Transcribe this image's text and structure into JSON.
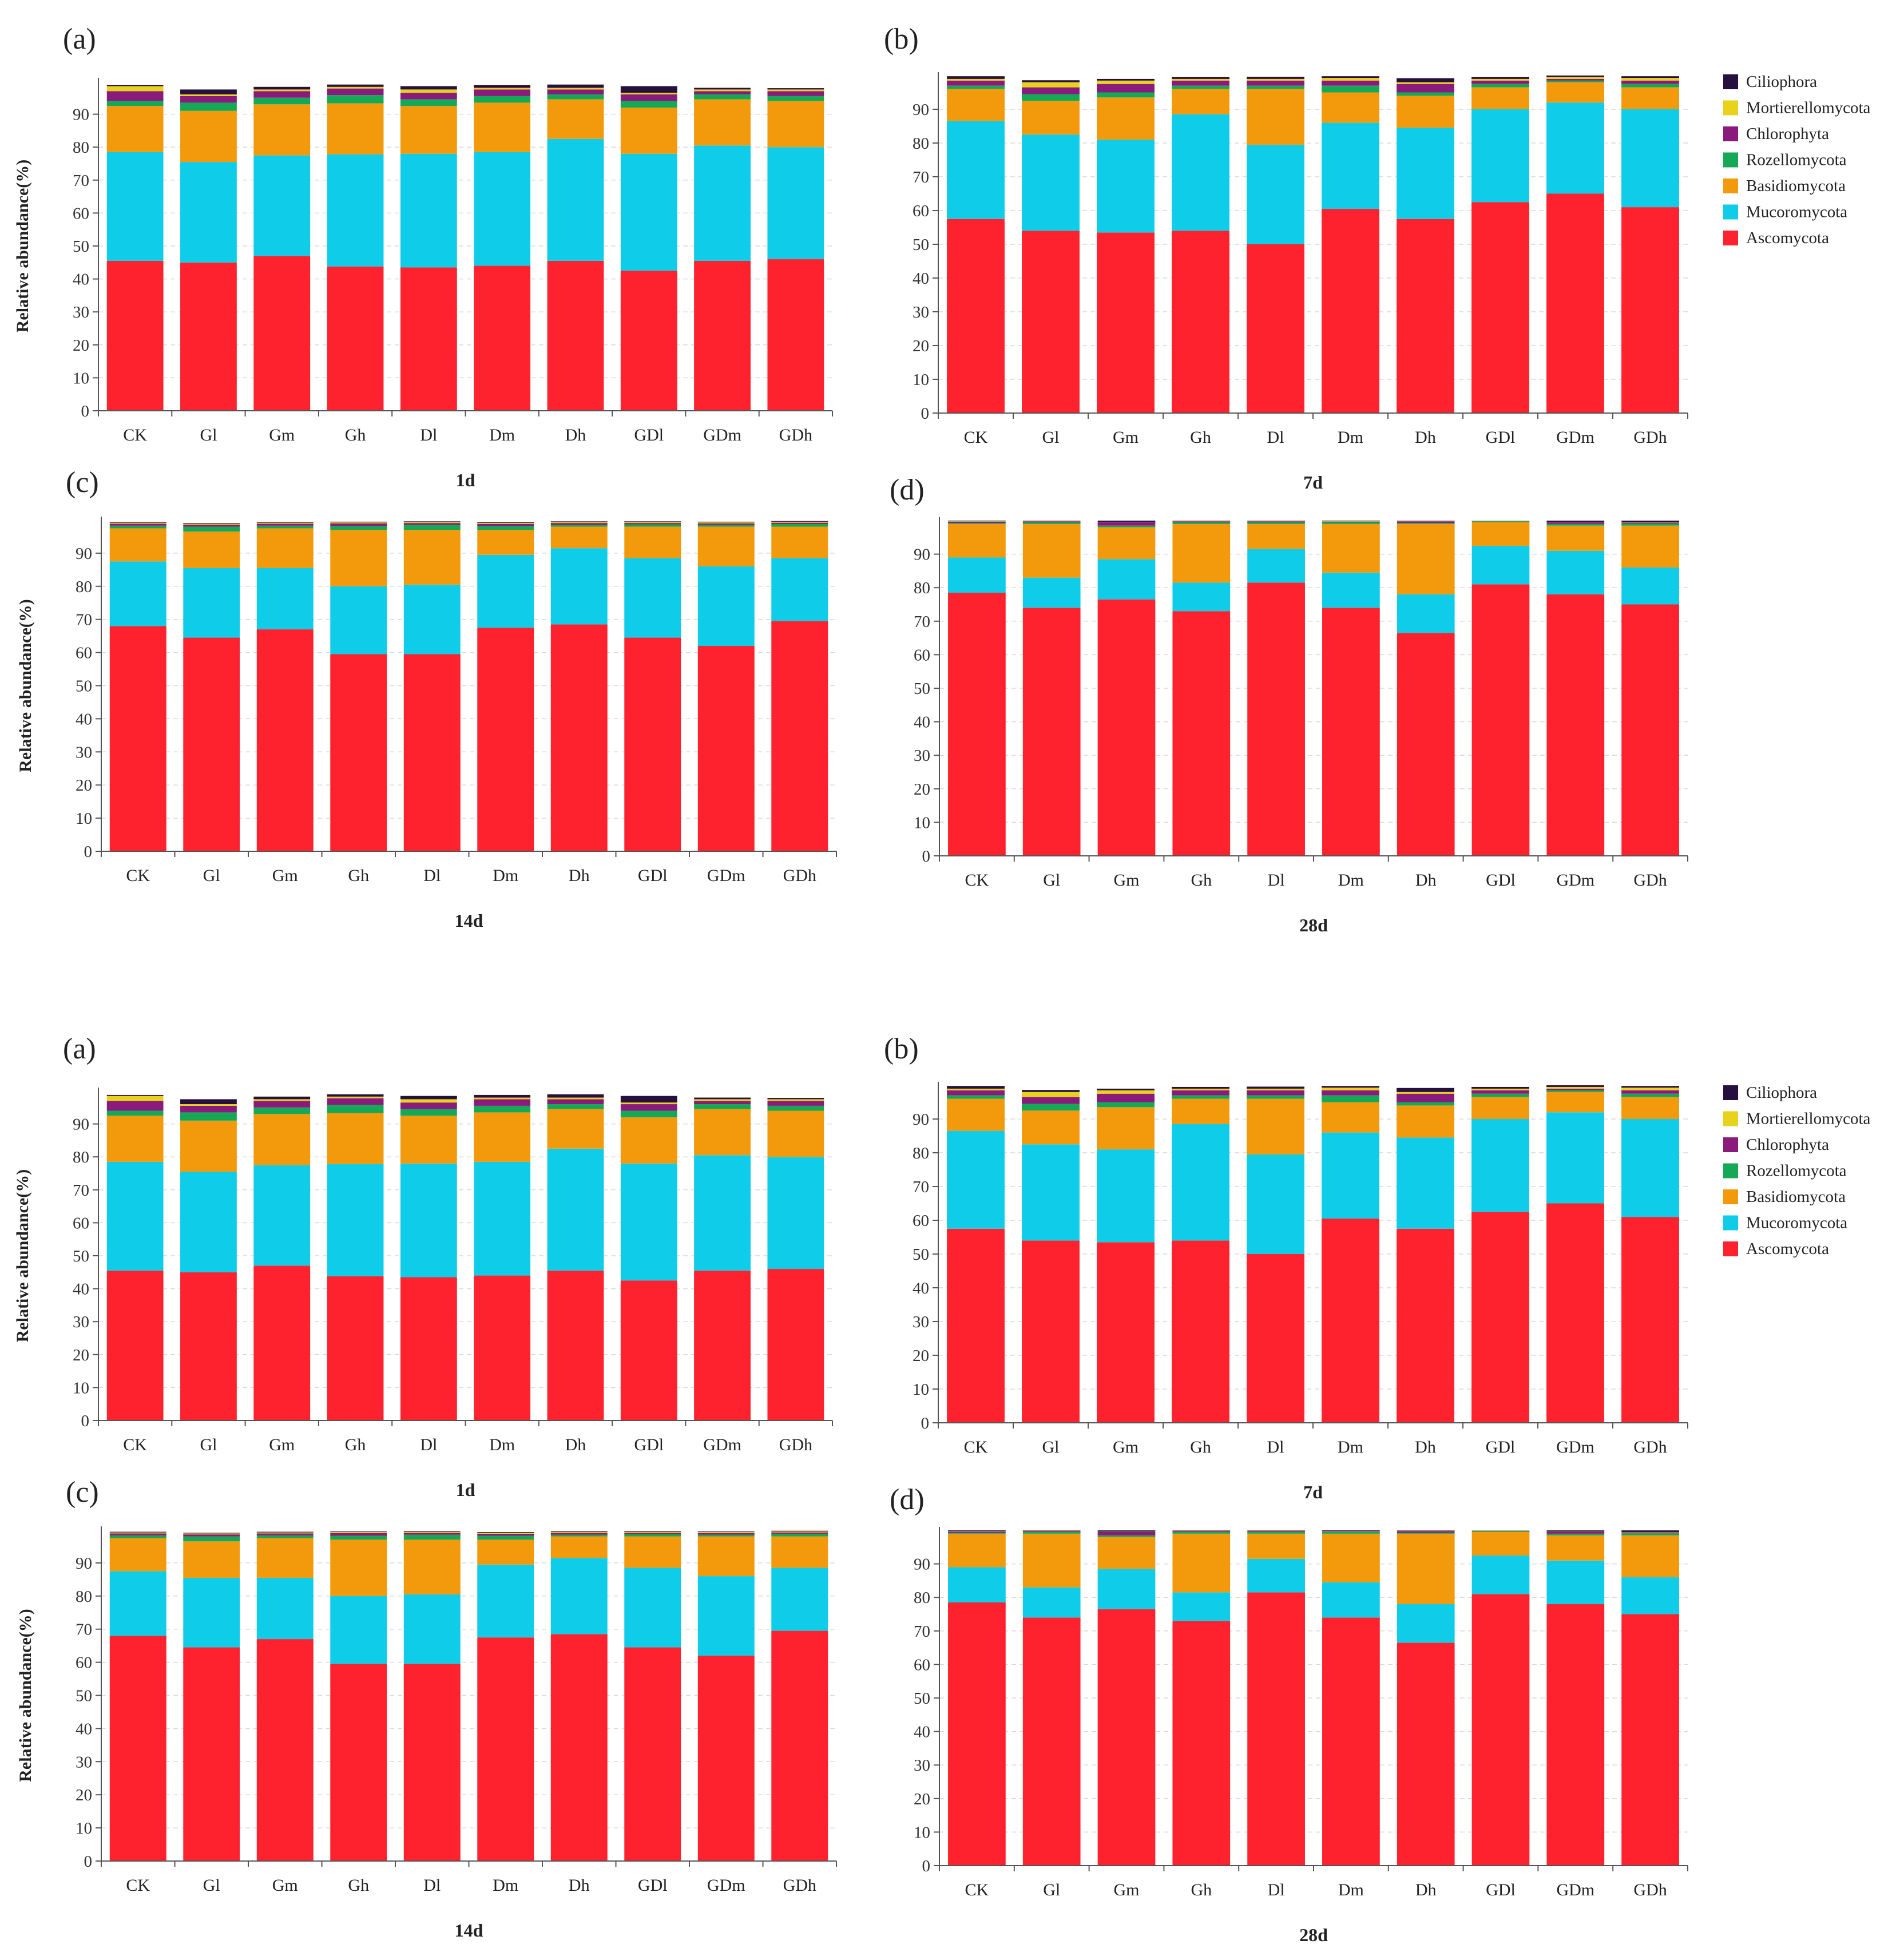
{
  "figure": {
    "legend_entries": [
      "Ciliophora",
      "Mortierellomycota",
      "Chlorophyta",
      "Rozellomycota",
      "Basidiomycota",
      "Mucoromycota",
      "Ascomycota"
    ]
  },
  "colors": {
    "Ascomycota": "#fe222e",
    "Mucoromycota": "#0fcde9",
    "Basidiomycota": "#f29a0c",
    "Rozellomycota": "#15a856",
    "Chlorophyta": "#8a1a7c",
    "Mortierellomycota": "#e8d21c",
    "Ciliophora": "#26103f"
  },
  "chart_data": [
    {
      "type": "bar",
      "stacked": true,
      "panel": "(a)",
      "xlabel": "1d",
      "ylabel": "Relative abundance(%)",
      "ylim": [
        0,
        100
      ],
      "yticks": [
        0,
        10,
        20,
        30,
        40,
        50,
        60,
        70,
        80,
        90
      ],
      "grid": true,
      "categories": [
        "CK",
        "Gl",
        "Gm",
        "Gh",
        "Dl",
        "Dm",
        "Dh",
        "GDl",
        "GDm",
        "GDh"
      ],
      "series": [
        {
          "name": "Ascomycota",
          "values": [
            45.5,
            45.0,
            47.0,
            43.8,
            43.5,
            44.0,
            45.5,
            42.5,
            45.5,
            46.0
          ]
        },
        {
          "name": "Mucoromycota",
          "values": [
            33.0,
            30.5,
            30.5,
            34.0,
            34.5,
            34.5,
            37.0,
            35.5,
            35.0,
            34.0
          ]
        },
        {
          "name": "Basidiomycota",
          "values": [
            14.0,
            15.5,
            15.5,
            15.5,
            14.5,
            15.0,
            12.0,
            14.0,
            14.0,
            14.0
          ]
        },
        {
          "name": "Rozellomycota",
          "values": [
            1.5,
            2.5,
            2.0,
            2.5,
            2.0,
            2.0,
            1.5,
            2.0,
            1.5,
            1.5
          ]
        },
        {
          "name": "Chlorophyta",
          "values": [
            3.0,
            2.0,
            2.0,
            2.0,
            2.0,
            2.0,
            1.5,
            2.0,
            1.0,
            1.5
          ]
        },
        {
          "name": "Mortierellomycota",
          "values": [
            1.5,
            0.5,
            0.5,
            0.5,
            1.0,
            0.5,
            0.5,
            0.5,
            0.5,
            0.5
          ]
        },
        {
          "name": "Ciliophora",
          "values": [
            0.3,
            1.5,
            0.8,
            0.7,
            1.0,
            0.8,
            1.0,
            2.0,
            0.5,
            0.4
          ]
        }
      ]
    },
    {
      "type": "bar",
      "stacked": true,
      "panel": "(b)",
      "xlabel": "7d",
      "ylabel": "",
      "ylim": [
        0,
        100
      ],
      "yticks": [
        0,
        10,
        20,
        30,
        40,
        50,
        60,
        70,
        80,
        90
      ],
      "grid": true,
      "categories": [
        "CK",
        "Gl",
        "Gm",
        "Gh",
        "Dl",
        "Dm",
        "Dh",
        "GDl",
        "GDm",
        "GDh"
      ],
      "series": [
        {
          "name": "Ascomycota",
          "values": [
            57.5,
            54.0,
            53.5,
            54.0,
            50.0,
            60.5,
            57.5,
            62.5,
            65.0,
            61.0
          ]
        },
        {
          "name": "Mucoromycota",
          "values": [
            29.0,
            28.5,
            27.5,
            34.5,
            29.5,
            25.5,
            27.0,
            27.5,
            27.0,
            29.0
          ]
        },
        {
          "name": "Basidiomycota",
          "values": [
            9.5,
            10.0,
            12.5,
            7.5,
            16.5,
            9.0,
            9.5,
            6.5,
            6.0,
            6.5
          ]
        },
        {
          "name": "Rozellomycota",
          "values": [
            1.0,
            2.0,
            1.5,
            1.0,
            1.0,
            2.0,
            1.0,
            1.0,
            0.5,
            1.0
          ]
        },
        {
          "name": "Chlorophyta",
          "values": [
            1.5,
            2.0,
            2.5,
            1.5,
            1.5,
            1.5,
            2.5,
            1.0,
            0.5,
            1.0
          ]
        },
        {
          "name": "Mortierellomycota",
          "values": [
            0.5,
            1.5,
            1.0,
            0.5,
            0.5,
            0.8,
            0.5,
            0.5,
            0.5,
            0.8
          ]
        },
        {
          "name": "Ciliophora",
          "values": [
            0.8,
            0.6,
            0.5,
            0.5,
            0.6,
            0.5,
            1.2,
            0.5,
            0.5,
            0.5
          ]
        }
      ]
    },
    {
      "type": "bar",
      "stacked": true,
      "panel": "(c)",
      "xlabel": "14d",
      "ylabel": "Relative abundance(%)",
      "ylim": [
        0,
        100
      ],
      "yticks": [
        0,
        10,
        20,
        30,
        40,
        50,
        60,
        70,
        80,
        90
      ],
      "grid": true,
      "categories": [
        "CK",
        "Gl",
        "Gm",
        "Gh",
        "Dl",
        "Dm",
        "Dh",
        "GDl",
        "GDm",
        "GDh"
      ],
      "series": [
        {
          "name": "Ascomycota",
          "values": [
            68.0,
            64.5,
            67.0,
            59.5,
            59.5,
            67.5,
            68.5,
            64.5,
            62.0,
            69.5
          ]
        },
        {
          "name": "Mucoromycota",
          "values": [
            19.5,
            21.0,
            18.5,
            20.5,
            21.0,
            22.0,
            23.0,
            24.0,
            24.0,
            19.0
          ]
        },
        {
          "name": "Basidiomycota",
          "values": [
            10.0,
            11.0,
            12.0,
            17.0,
            16.5,
            7.5,
            6.5,
            9.5,
            12.0,
            9.5
          ]
        },
        {
          "name": "Rozellomycota",
          "values": [
            0.8,
            1.5,
            0.8,
            1.2,
            1.5,
            1.2,
            0.5,
            0.7,
            0.5,
            0.8
          ]
        },
        {
          "name": "Chlorophyta",
          "values": [
            0.6,
            0.6,
            0.6,
            0.8,
            0.6,
            0.6,
            0.6,
            0.4,
            0.5,
            0.4
          ]
        },
        {
          "name": "Mortierellomycota",
          "values": [
            0.3,
            0.3,
            0.3,
            0.3,
            0.3,
            0.3,
            0.3,
            0.3,
            0.3,
            0.3
          ]
        },
        {
          "name": "Ciliophora",
          "values": [
            0.2,
            0.2,
            0.2,
            0.2,
            0.2,
            0.2,
            0.2,
            0.2,
            0.2,
            0.2
          ]
        }
      ]
    },
    {
      "type": "bar",
      "stacked": true,
      "panel": "(d)",
      "xlabel": "28d",
      "ylabel": "",
      "ylim": [
        0,
        100
      ],
      "yticks": [
        0,
        10,
        20,
        30,
        40,
        50,
        60,
        70,
        80,
        90
      ],
      "grid": true,
      "categories": [
        "CK",
        "Gl",
        "Gm",
        "Gh",
        "Dl",
        "Dm",
        "Dh",
        "GDl",
        "GDm",
        "GDh"
      ],
      "series": [
        {
          "name": "Ascomycota",
          "values": [
            78.5,
            74.0,
            76.5,
            73.0,
            81.5,
            74.0,
            66.5,
            81.0,
            78.0,
            75.0
          ]
        },
        {
          "name": "Mucoromycota",
          "values": [
            10.5,
            9.0,
            12.0,
            8.5,
            10.0,
            10.5,
            11.5,
            11.5,
            13.0,
            11.0
          ]
        },
        {
          "name": "Basidiomycota",
          "values": [
            10.0,
            16.0,
            9.5,
            17.5,
            7.5,
            14.5,
            21.0,
            7.0,
            7.5,
            12.5
          ]
        },
        {
          "name": "Rozellomycota",
          "values": [
            0.3,
            0.5,
            0.5,
            0.5,
            0.5,
            0.5,
            0.3,
            0.3,
            0.5,
            0.6
          ]
        },
        {
          "name": "Chlorophyta",
          "values": [
            0.4,
            0.3,
            1.0,
            0.3,
            0.3,
            0.2,
            0.5,
            0.1,
            0.5,
            0.3
          ]
        },
        {
          "name": "Mortierellomycota",
          "values": [
            0.1,
            0.1,
            0.1,
            0.1,
            0.1,
            0.1,
            0.1,
            0.1,
            0.1,
            0.1
          ]
        },
        {
          "name": "Ciliophora",
          "values": [
            0.2,
            0.1,
            0.4,
            0.1,
            0.1,
            0.2,
            0.1,
            0.0,
            0.4,
            0.5
          ]
        }
      ]
    },
    {
      "type": "bar",
      "stacked": true,
      "panel": "(a)",
      "xlabel": "1d",
      "ylabel": "Relative abundance(%)",
      "ylim": [
        0,
        100
      ],
      "yticks": [
        0,
        10,
        20,
        30,
        40,
        50,
        60,
        70,
        80,
        90
      ],
      "grid": true,
      "categories": [
        "CK",
        "Gl",
        "Gm",
        "Gh",
        "Dl",
        "Dm",
        "Dh",
        "GDl",
        "GDm",
        "GDh"
      ],
      "series": [
        {
          "name": "Ascomycota",
          "values": [
            45.5,
            45.0,
            47.0,
            43.8,
            43.5,
            44.0,
            45.5,
            42.5,
            45.5,
            46.0
          ]
        },
        {
          "name": "Mucoromycota",
          "values": [
            33.0,
            30.5,
            30.5,
            34.0,
            34.5,
            34.5,
            37.0,
            35.5,
            35.0,
            34.0
          ]
        },
        {
          "name": "Basidiomycota",
          "values": [
            14.0,
            15.5,
            15.5,
            15.5,
            14.5,
            15.0,
            12.0,
            14.0,
            14.0,
            14.0
          ]
        },
        {
          "name": "Rozellomycota",
          "values": [
            1.5,
            2.5,
            2.0,
            2.5,
            2.0,
            2.0,
            1.5,
            2.0,
            1.5,
            1.5
          ]
        },
        {
          "name": "Chlorophyta",
          "values": [
            3.0,
            2.0,
            2.0,
            2.0,
            2.0,
            2.0,
            1.5,
            2.0,
            1.0,
            1.5
          ]
        },
        {
          "name": "Mortierellomycota",
          "values": [
            1.5,
            0.5,
            0.5,
            0.5,
            1.0,
            0.5,
            0.5,
            0.5,
            0.5,
            0.5
          ]
        },
        {
          "name": "Ciliophora",
          "values": [
            0.3,
            1.5,
            0.8,
            0.7,
            1.0,
            0.8,
            1.0,
            2.0,
            0.5,
            0.4
          ]
        }
      ]
    },
    {
      "type": "bar",
      "stacked": true,
      "panel": "(b)",
      "xlabel": "7d",
      "ylabel": "",
      "ylim": [
        0,
        100
      ],
      "yticks": [
        0,
        10,
        20,
        30,
        40,
        50,
        60,
        70,
        80,
        90
      ],
      "grid": true,
      "categories": [
        "CK",
        "Gl",
        "Gm",
        "Gh",
        "Dl",
        "Dm",
        "Dh",
        "GDl",
        "GDm",
        "GDh"
      ],
      "series": [
        {
          "name": "Ascomycota",
          "values": [
            57.5,
            54.0,
            53.5,
            54.0,
            50.0,
            60.5,
            57.5,
            62.5,
            65.0,
            61.0
          ]
        },
        {
          "name": "Mucoromycota",
          "values": [
            29.0,
            28.5,
            27.5,
            34.5,
            29.5,
            25.5,
            27.0,
            27.5,
            27.0,
            29.0
          ]
        },
        {
          "name": "Basidiomycota",
          "values": [
            9.5,
            10.0,
            12.5,
            7.5,
            16.5,
            9.0,
            9.5,
            6.5,
            6.0,
            6.5
          ]
        },
        {
          "name": "Rozellomycota",
          "values": [
            1.0,
            2.0,
            1.5,
            1.0,
            1.0,
            2.0,
            1.0,
            1.0,
            0.5,
            1.0
          ]
        },
        {
          "name": "Chlorophyta",
          "values": [
            1.5,
            2.0,
            2.5,
            1.5,
            1.5,
            1.5,
            2.5,
            1.0,
            0.5,
            1.0
          ]
        },
        {
          "name": "Mortierellomycota",
          "values": [
            0.5,
            1.5,
            1.0,
            0.5,
            0.5,
            0.8,
            0.5,
            0.5,
            0.5,
            0.8
          ]
        },
        {
          "name": "Ciliophora",
          "values": [
            0.8,
            0.6,
            0.5,
            0.5,
            0.6,
            0.5,
            1.2,
            0.5,
            0.5,
            0.5
          ]
        }
      ]
    },
    {
      "type": "bar",
      "stacked": true,
      "panel": "(c)",
      "xlabel": "14d",
      "ylabel": "Relative abundance(%)",
      "ylim": [
        0,
        100
      ],
      "yticks": [
        0,
        10,
        20,
        30,
        40,
        50,
        60,
        70,
        80,
        90
      ],
      "grid": true,
      "categories": [
        "CK",
        "Gl",
        "Gm",
        "Gh",
        "Dl",
        "Dm",
        "Dh",
        "GDl",
        "GDm",
        "GDh"
      ],
      "series": [
        {
          "name": "Ascomycota",
          "values": [
            68.0,
            64.5,
            67.0,
            59.5,
            59.5,
            67.5,
            68.5,
            64.5,
            62.0,
            69.5
          ]
        },
        {
          "name": "Mucoromycota",
          "values": [
            19.5,
            21.0,
            18.5,
            20.5,
            21.0,
            22.0,
            23.0,
            24.0,
            24.0,
            19.0
          ]
        },
        {
          "name": "Basidiomycota",
          "values": [
            10.0,
            11.0,
            12.0,
            17.0,
            16.5,
            7.5,
            6.5,
            9.5,
            12.0,
            9.5
          ]
        },
        {
          "name": "Rozellomycota",
          "values": [
            0.8,
            1.5,
            0.8,
            1.2,
            1.5,
            1.2,
            0.5,
            0.7,
            0.5,
            0.8
          ]
        },
        {
          "name": "Chlorophyta",
          "values": [
            0.6,
            0.6,
            0.6,
            0.8,
            0.6,
            0.6,
            0.6,
            0.4,
            0.5,
            0.4
          ]
        },
        {
          "name": "Mortierellomycota",
          "values": [
            0.3,
            0.3,
            0.3,
            0.3,
            0.3,
            0.3,
            0.3,
            0.3,
            0.3,
            0.3
          ]
        },
        {
          "name": "Ciliophora",
          "values": [
            0.2,
            0.2,
            0.2,
            0.2,
            0.2,
            0.2,
            0.2,
            0.2,
            0.2,
            0.2
          ]
        }
      ]
    },
    {
      "type": "bar",
      "stacked": true,
      "panel": "(d)",
      "xlabel": "28d",
      "ylabel": "",
      "ylim": [
        0,
        100
      ],
      "yticks": [
        0,
        10,
        20,
        30,
        40,
        50,
        60,
        70,
        80,
        90
      ],
      "grid": true,
      "categories": [
        "CK",
        "Gl",
        "Gm",
        "Gh",
        "Dl",
        "Dm",
        "Dh",
        "GDl",
        "GDm",
        "GDh"
      ],
      "series": [
        {
          "name": "Ascomycota",
          "values": [
            78.5,
            74.0,
            76.5,
            73.0,
            81.5,
            74.0,
            66.5,
            81.0,
            78.0,
            75.0
          ]
        },
        {
          "name": "Mucoromycota",
          "values": [
            10.5,
            9.0,
            12.0,
            8.5,
            10.0,
            10.5,
            11.5,
            11.5,
            13.0,
            11.0
          ]
        },
        {
          "name": "Basidiomycota",
          "values": [
            10.0,
            16.0,
            9.5,
            17.5,
            7.5,
            14.5,
            21.0,
            7.0,
            7.5,
            12.5
          ]
        },
        {
          "name": "Rozellomycota",
          "values": [
            0.3,
            0.5,
            0.5,
            0.5,
            0.5,
            0.5,
            0.3,
            0.3,
            0.5,
            0.6
          ]
        },
        {
          "name": "Chlorophyta",
          "values": [
            0.4,
            0.3,
            1.0,
            0.3,
            0.3,
            0.2,
            0.5,
            0.1,
            0.5,
            0.3
          ]
        },
        {
          "name": "Mortierellomycota",
          "values": [
            0.1,
            0.1,
            0.1,
            0.1,
            0.1,
            0.1,
            0.1,
            0.1,
            0.1,
            0.1
          ]
        },
        {
          "name": "Ciliophora",
          "values": [
            0.2,
            0.1,
            0.4,
            0.1,
            0.1,
            0.2,
            0.1,
            0.0,
            0.4,
            0.5
          ]
        }
      ]
    }
  ]
}
